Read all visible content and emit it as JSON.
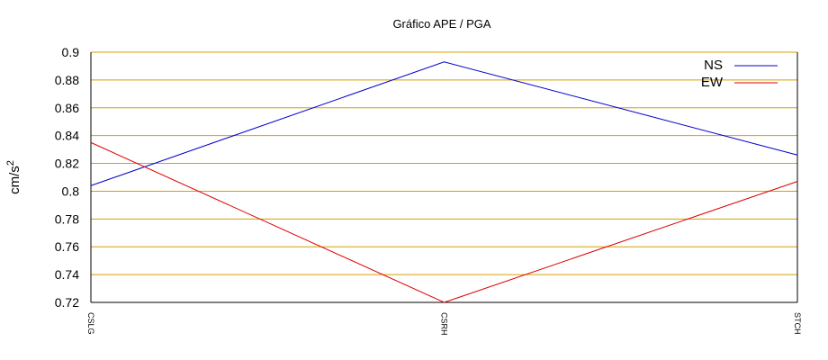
{
  "chart_data": {
    "type": "line",
    "title": "Gráfico  APE / PGA",
    "xlabel": "",
    "ylabel": "cm/s",
    "ylabel_superscript": "2",
    "categories": [
      "CSLG",
      "CSRH",
      "STCH"
    ],
    "series": [
      {
        "name": "NS",
        "color": "#0000cc",
        "values": [
          0.804,
          0.893,
          0.826
        ]
      },
      {
        "name": "EW",
        "color": "#dd0000",
        "values": [
          0.835,
          0.72,
          0.807
        ]
      }
    ],
    "ylim": [
      0.72,
      0.9
    ],
    "yticks": [
      "0.72",
      "0.74",
      "0.76",
      "0.78",
      "0.8",
      "0.82",
      "0.84",
      "0.86",
      "0.88",
      "0.9"
    ],
    "grid": true,
    "grid_color": "#d4a000",
    "legend_position": "top-right"
  }
}
